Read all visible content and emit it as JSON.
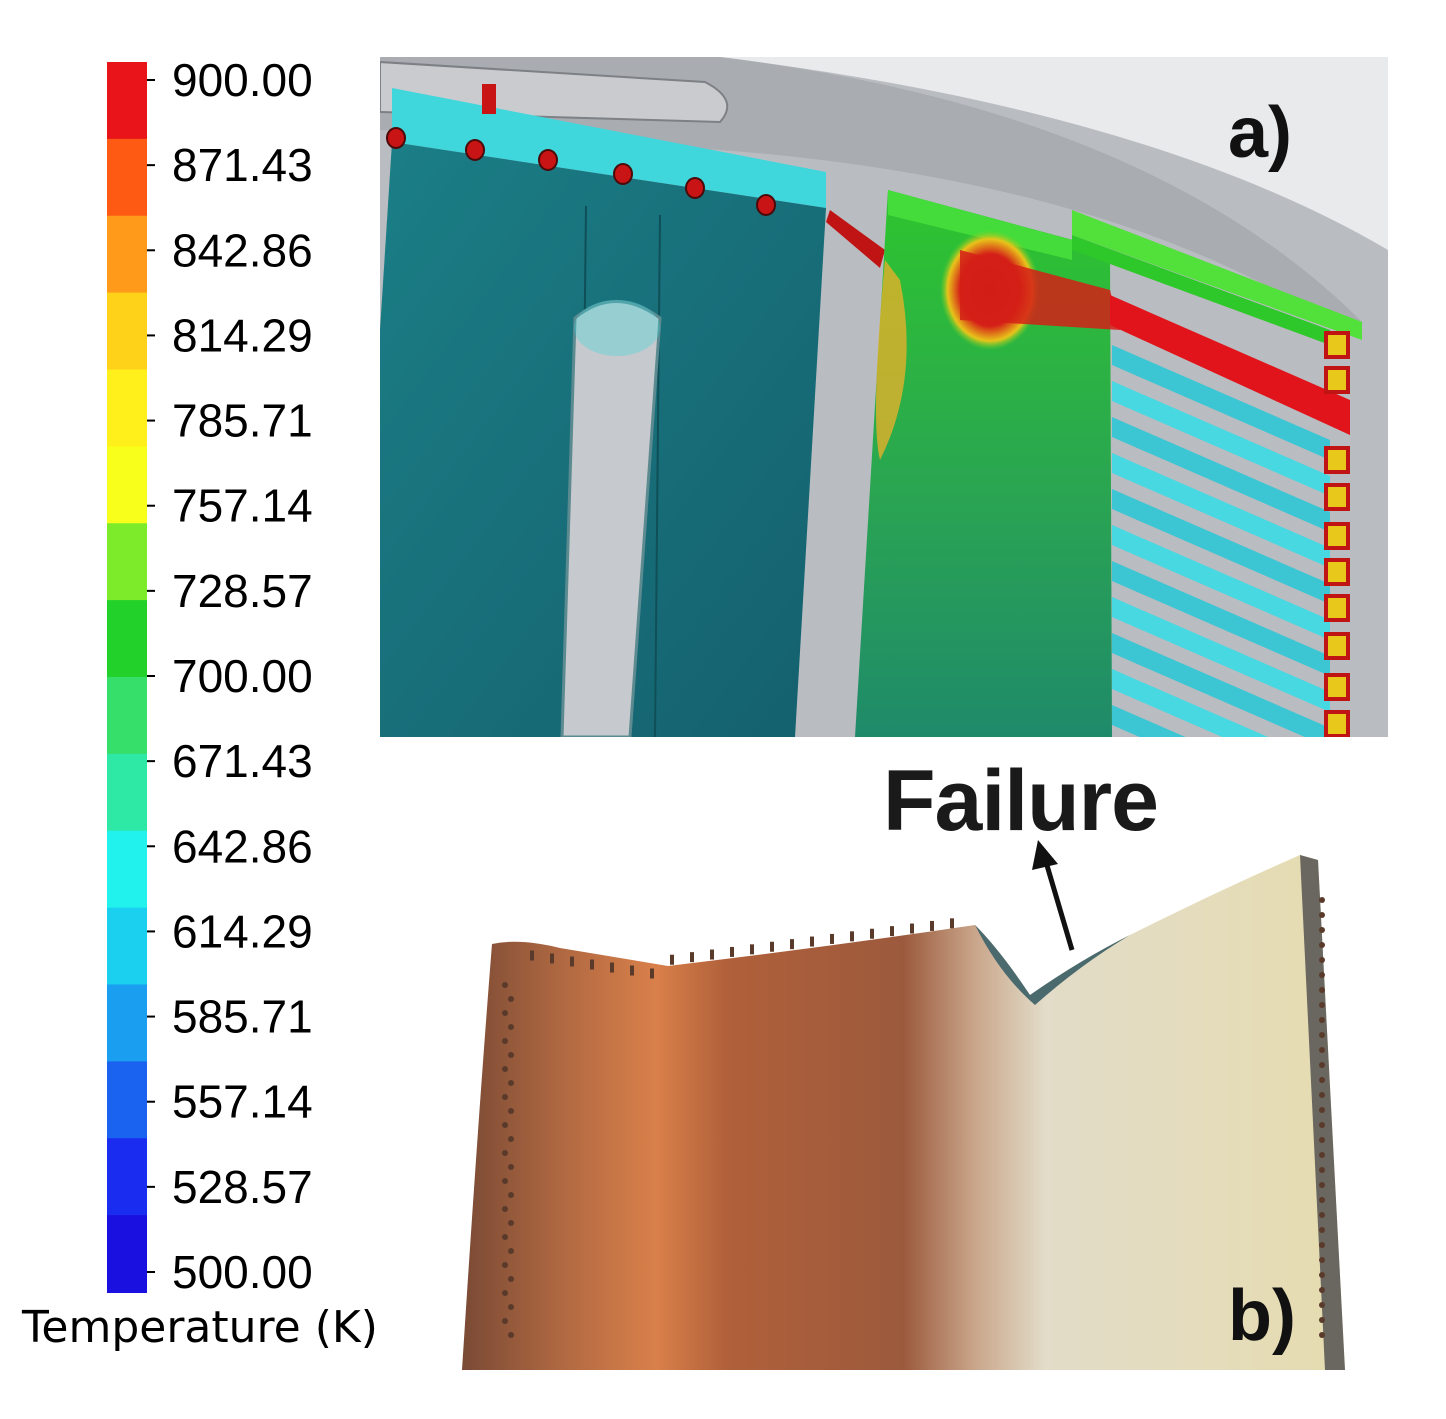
{
  "legend": {
    "title": "Temperature (K)",
    "ticks": [
      "900.00",
      "871.43",
      "842.86",
      "814.29",
      "785.71",
      "757.14",
      "728.57",
      "700.00",
      "671.43",
      "642.86",
      "614.29",
      "585.71",
      "557.14",
      "528.57",
      "500.00"
    ],
    "band_colors": [
      "#e8141a",
      "#ff5a14",
      "#ff9a1a",
      "#ffd21a",
      "#ffef1a",
      "#f7ff1a",
      "#7dea2a",
      "#22d12a",
      "#36df6a",
      "#2ee8a6",
      "#22f2ee",
      "#1ad0ee",
      "#1a9ef0",
      "#1a62f0",
      "#1a2cf0",
      "#1a10e0"
    ]
  },
  "panel_a": {
    "label": "a)"
  },
  "panel_b": {
    "label": "b)",
    "annotation": "Failure"
  }
}
